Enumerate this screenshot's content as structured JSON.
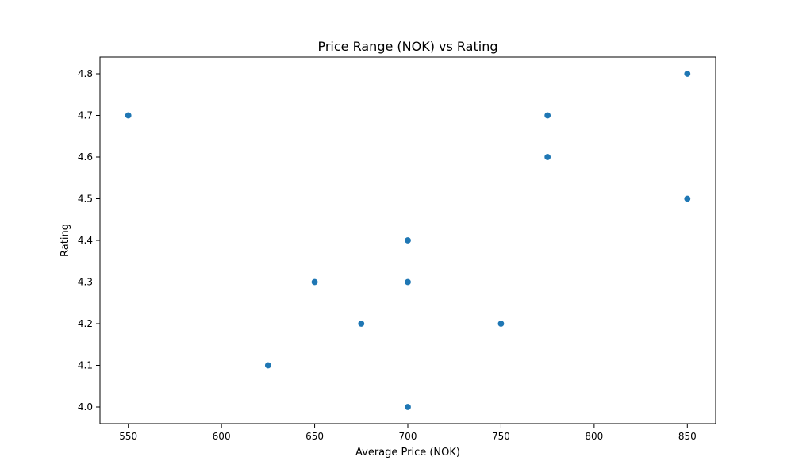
{
  "chart_data": {
    "type": "scatter",
    "title": "Price Range (NOK) vs Rating",
    "xlabel": "Average Price (NOK)",
    "ylabel": "Rating",
    "xlim": [
      534.8,
      865.2
    ],
    "ylim": [
      3.96,
      4.84
    ],
    "xticks": [
      550,
      600,
      650,
      700,
      750,
      800,
      850
    ],
    "xtick_labels": [
      "550",
      "600",
      "650",
      "700",
      "750",
      "800",
      "850"
    ],
    "yticks": [
      4.0,
      4.1,
      4.2,
      4.3,
      4.4,
      4.5,
      4.6,
      4.7,
      4.8
    ],
    "ytick_labels": [
      "4.0",
      "4.1",
      "4.2",
      "4.3",
      "4.4",
      "4.5",
      "4.6",
      "4.7",
      "4.8"
    ],
    "grid": false,
    "marker_color": "#1f77b4",
    "points": [
      {
        "x": 550,
        "y": 4.7
      },
      {
        "x": 625,
        "y": 4.1
      },
      {
        "x": 650,
        "y": 4.3
      },
      {
        "x": 675,
        "y": 4.2
      },
      {
        "x": 700,
        "y": 4.4
      },
      {
        "x": 700,
        "y": 4.3
      },
      {
        "x": 700,
        "y": 4.0
      },
      {
        "x": 750,
        "y": 4.2
      },
      {
        "x": 775,
        "y": 4.7
      },
      {
        "x": 775,
        "y": 4.6
      },
      {
        "x": 850,
        "y": 4.8
      },
      {
        "x": 850,
        "y": 4.5
      }
    ]
  }
}
